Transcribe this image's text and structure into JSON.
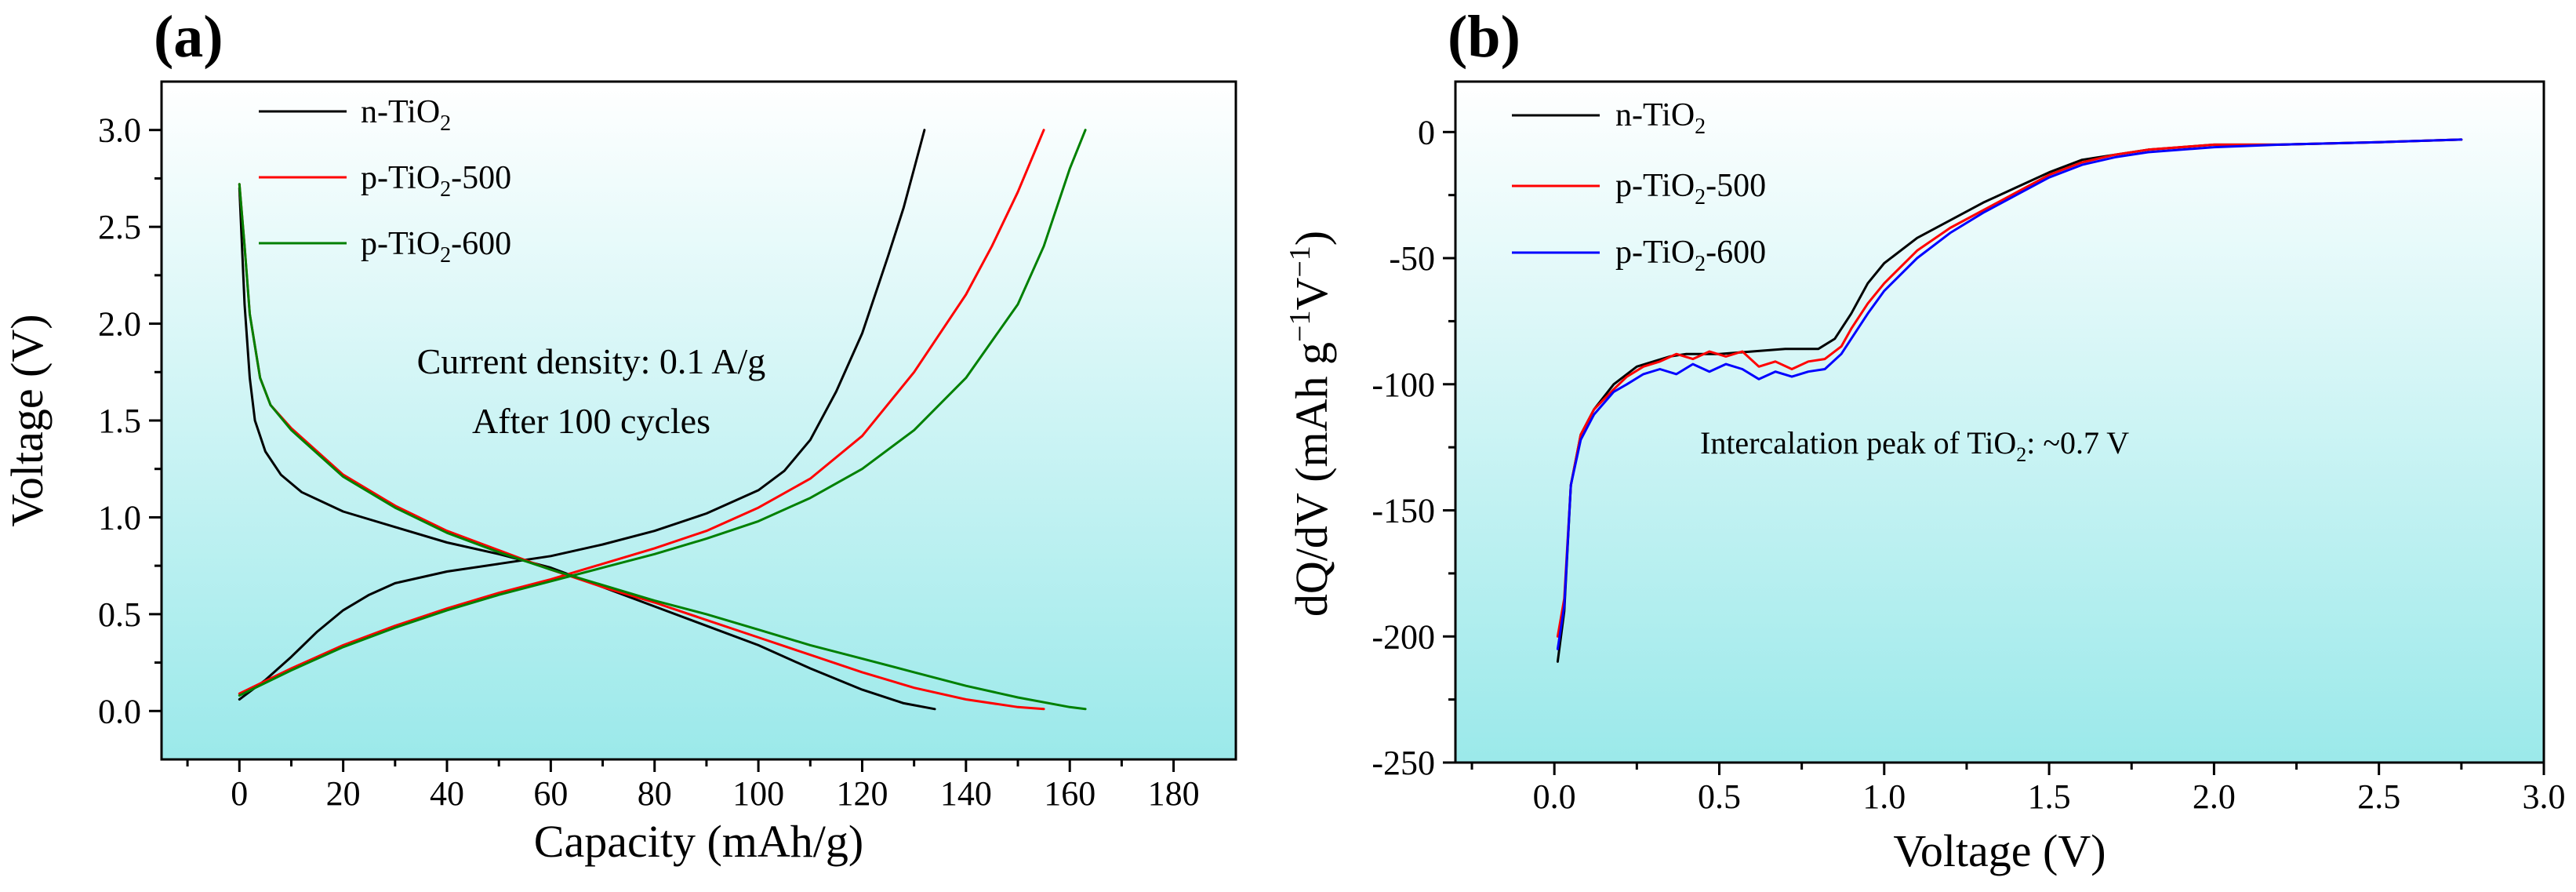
{
  "chart_data": [
    {
      "type": "line",
      "panel_label": "(a)",
      "xlabel": "Capacity (mAh/g)",
      "ylabel": "Voltage (V)",
      "xlim": [
        -15,
        192
      ],
      "ylim": [
        -0.25,
        3.25
      ],
      "xticks": [
        0,
        20,
        40,
        60,
        80,
        100,
        120,
        140,
        160,
        180
      ],
      "xtick_labels": [
        "0",
        "20",
        "40",
        "60",
        "80",
        "100",
        "120",
        "140",
        "160",
        "180"
      ],
      "yticks": [
        0.0,
        0.5,
        1.0,
        1.5,
        2.0,
        2.5,
        3.0
      ],
      "ytick_labels": [
        "0.0",
        "0.5",
        "1.0",
        "1.5",
        "2.0",
        "2.5",
        "3.0"
      ],
      "legend_position": "top-left",
      "annotations": [
        {
          "text": "Current density: 0.1 A/g",
          "at": [
            60,
            1.85
          ]
        },
        {
          "text": "After 100 cycles",
          "at": [
            60,
            1.5
          ]
        }
      ],
      "series": [
        {
          "name": "n-TiO2",
          "legend_base": "n-TiO",
          "legend_sub": "2",
          "legend_tail": "",
          "color": "#000000",
          "discharge": [
            [
              0,
              2.7
            ],
            [
              1,
              2.1
            ],
            [
              2,
              1.72
            ],
            [
              3,
              1.5
            ],
            [
              5,
              1.34
            ],
            [
              8,
              1.22
            ],
            [
              12,
              1.13
            ],
            [
              20,
              1.03
            ],
            [
              30,
              0.95
            ],
            [
              40,
              0.87
            ],
            [
              50,
              0.81
            ],
            [
              60,
              0.74
            ],
            [
              70,
              0.64
            ],
            [
              80,
              0.54
            ],
            [
              90,
              0.44
            ],
            [
              100,
              0.34
            ],
            [
              110,
              0.22
            ],
            [
              120,
              0.11
            ],
            [
              128,
              0.04
            ],
            [
              134,
              0.01
            ]
          ],
          "charge": [
            [
              0,
              0.06
            ],
            [
              5,
              0.16
            ],
            [
              10,
              0.28
            ],
            [
              15,
              0.41
            ],
            [
              20,
              0.52
            ],
            [
              25,
              0.6
            ],
            [
              30,
              0.66
            ],
            [
              40,
              0.72
            ],
            [
              50,
              0.76
            ],
            [
              60,
              0.8
            ],
            [
              70,
              0.86
            ],
            [
              80,
              0.93
            ],
            [
              90,
              1.02
            ],
            [
              100,
              1.14
            ],
            [
              105,
              1.24
            ],
            [
              110,
              1.4
            ],
            [
              115,
              1.65
            ],
            [
              120,
              1.95
            ],
            [
              125,
              2.35
            ],
            [
              128,
              2.6
            ],
            [
              130,
              2.8
            ],
            [
              132,
              3.0
            ]
          ]
        },
        {
          "name": "p-TiO2-500",
          "legend_base": "p-TiO",
          "legend_sub": "2",
          "legend_tail": "-500",
          "color": "#ff0000",
          "discharge": [
            [
              0,
              2.72
            ],
            [
              1,
              2.4
            ],
            [
              2,
              2.05
            ],
            [
              4,
              1.72
            ],
            [
              6,
              1.58
            ],
            [
              10,
              1.46
            ],
            [
              20,
              1.22
            ],
            [
              30,
              1.06
            ],
            [
              40,
              0.93
            ],
            [
              50,
              0.83
            ],
            [
              60,
              0.73
            ],
            [
              70,
              0.64
            ],
            [
              80,
              0.56
            ],
            [
              90,
              0.47
            ],
            [
              100,
              0.38
            ],
            [
              110,
              0.29
            ],
            [
              120,
              0.2
            ],
            [
              130,
              0.12
            ],
            [
              140,
              0.06
            ],
            [
              150,
              0.02
            ],
            [
              155,
              0.01
            ]
          ],
          "charge": [
            [
              0,
              0.09
            ],
            [
              10,
              0.22
            ],
            [
              20,
              0.34
            ],
            [
              30,
              0.44
            ],
            [
              40,
              0.53
            ],
            [
              50,
              0.61
            ],
            [
              60,
              0.68
            ],
            [
              70,
              0.76
            ],
            [
              80,
              0.84
            ],
            [
              90,
              0.93
            ],
            [
              100,
              1.05
            ],
            [
              110,
              1.2
            ],
            [
              120,
              1.42
            ],
            [
              130,
              1.75
            ],
            [
              140,
              2.15
            ],
            [
              145,
              2.4
            ],
            [
              150,
              2.68
            ],
            [
              155,
              3.0
            ]
          ]
        },
        {
          "name": "p-TiO2-600",
          "legend_base": "p-TiO",
          "legend_sub": "2",
          "legend_tail": "-600",
          "color": "#008000",
          "discharge": [
            [
              0,
              2.72
            ],
            [
              1,
              2.4
            ],
            [
              2,
              2.05
            ],
            [
              4,
              1.72
            ],
            [
              6,
              1.58
            ],
            [
              10,
              1.45
            ],
            [
              20,
              1.21
            ],
            [
              30,
              1.05
            ],
            [
              40,
              0.92
            ],
            [
              50,
              0.82
            ],
            [
              60,
              0.73
            ],
            [
              70,
              0.65
            ],
            [
              80,
              0.57
            ],
            [
              90,
              0.5
            ],
            [
              100,
              0.42
            ],
            [
              110,
              0.34
            ],
            [
              120,
              0.27
            ],
            [
              130,
              0.2
            ],
            [
              140,
              0.13
            ],
            [
              150,
              0.07
            ],
            [
              160,
              0.02
            ],
            [
              163,
              0.01
            ]
          ],
          "charge": [
            [
              0,
              0.08
            ],
            [
              10,
              0.21
            ],
            [
              20,
              0.33
            ],
            [
              30,
              0.43
            ],
            [
              40,
              0.52
            ],
            [
              50,
              0.6
            ],
            [
              60,
              0.67
            ],
            [
              70,
              0.74
            ],
            [
              80,
              0.81
            ],
            [
              90,
              0.89
            ],
            [
              100,
              0.98
            ],
            [
              110,
              1.1
            ],
            [
              120,
              1.25
            ],
            [
              130,
              1.45
            ],
            [
              140,
              1.72
            ],
            [
              150,
              2.1
            ],
            [
              155,
              2.4
            ],
            [
              160,
              2.8
            ],
            [
              163,
              3.0
            ]
          ]
        }
      ]
    },
    {
      "type": "line",
      "panel_label": "(b)",
      "xlabel": "Voltage (V)",
      "ylabel_main": "dQ/dV (mAh g",
      "ylabel_sup1": "−1",
      "ylabel_mid": "V",
      "ylabel_sup2": "−1",
      "ylabel_end": ")",
      "xlim": [
        -0.3,
        3.0
      ],
      "ylim": [
        -250,
        20
      ],
      "xticks": [
        0.0,
        0.5,
        1.0,
        1.5,
        2.0,
        2.5,
        3.0
      ],
      "xtick_labels": [
        "0.0",
        "0.5",
        "1.0",
        "1.5",
        "2.0",
        "2.5",
        "3.0"
      ],
      "yticks": [
        0,
        -50,
        -100,
        -150,
        -200,
        -250
      ],
      "ytick_labels": [
        "0",
        "-50",
        "-100",
        "-150",
        "-200",
        "-250"
      ],
      "legend_position": "top-left",
      "annotation": {
        "base": "Intercalation peak of TiO",
        "sub": "2",
        "tail": ": ~0.7 V",
        "at": [
          1.4,
          -122
        ]
      },
      "series": [
        {
          "name": "n-TiO2",
          "legend_base": "n-TiO",
          "legend_sub": "2",
          "legend_tail": "",
          "color": "#000000",
          "points": [
            [
              0.01,
              -210
            ],
            [
              0.03,
              -190
            ],
            [
              0.05,
              -140
            ],
            [
              0.08,
              -120
            ],
            [
              0.12,
              -110
            ],
            [
              0.18,
              -100
            ],
            [
              0.25,
              -93
            ],
            [
              0.3,
              -91
            ],
            [
              0.35,
              -89
            ],
            [
              0.4,
              -88
            ],
            [
              0.5,
              -88
            ],
            [
              0.6,
              -87
            ],
            [
              0.7,
              -86
            ],
            [
              0.8,
              -86
            ],
            [
              0.85,
              -82
            ],
            [
              0.9,
              -72
            ],
            [
              0.95,
              -60
            ],
            [
              1.0,
              -52
            ],
            [
              1.1,
              -42
            ],
            [
              1.2,
              -35
            ],
            [
              1.3,
              -28
            ],
            [
              1.4,
              -22
            ],
            [
              1.5,
              -16
            ],
            [
              1.6,
              -11
            ],
            [
              1.7,
              -9
            ],
            [
              1.8,
              -7
            ],
            [
              1.9,
              -6
            ],
            [
              2.0,
              -5
            ],
            [
              2.2,
              -5
            ],
            [
              2.5,
              -4
            ],
            [
              2.75,
              -3
            ]
          ]
        },
        {
          "name": "p-TiO2-500",
          "legend_base": "p-TiO",
          "legend_sub": "2",
          "legend_tail": "-500",
          "color": "#ff0000",
          "points": [
            [
              0.01,
              -200
            ],
            [
              0.03,
              -185
            ],
            [
              0.05,
              -140
            ],
            [
              0.08,
              -120
            ],
            [
              0.12,
              -110
            ],
            [
              0.18,
              -102
            ],
            [
              0.22,
              -97
            ],
            [
              0.27,
              -93
            ],
            [
              0.32,
              -91
            ],
            [
              0.37,
              -88
            ],
            [
              0.42,
              -90
            ],
            [
              0.47,
              -87
            ],
            [
              0.52,
              -89
            ],
            [
              0.57,
              -87
            ],
            [
              0.62,
              -93
            ],
            [
              0.67,
              -91
            ],
            [
              0.72,
              -94
            ],
            [
              0.77,
              -91
            ],
            [
              0.82,
              -90
            ],
            [
              0.87,
              -85
            ],
            [
              0.9,
              -78
            ],
            [
              0.95,
              -68
            ],
            [
              1.0,
              -60
            ],
            [
              1.1,
              -47
            ],
            [
              1.2,
              -38
            ],
            [
              1.3,
              -31
            ],
            [
              1.4,
              -24
            ],
            [
              1.5,
              -17
            ],
            [
              1.6,
              -12
            ],
            [
              1.7,
              -9
            ],
            [
              1.8,
              -7
            ],
            [
              2.0,
              -5
            ],
            [
              2.2,
              -5
            ],
            [
              2.5,
              -4
            ],
            [
              2.75,
              -3
            ]
          ]
        },
        {
          "name": "p-TiO2-600",
          "legend_base": "p-TiO",
          "legend_sub": "2",
          "legend_tail": "-600",
          "color": "#0000ff",
          "points": [
            [
              0.01,
              -205
            ],
            [
              0.03,
              -188
            ],
            [
              0.05,
              -140
            ],
            [
              0.08,
              -122
            ],
            [
              0.12,
              -112
            ],
            [
              0.18,
              -103
            ],
            [
              0.22,
              -100
            ],
            [
              0.27,
              -96
            ],
            [
              0.32,
              -94
            ],
            [
              0.37,
              -96
            ],
            [
              0.42,
              -92
            ],
            [
              0.47,
              -95
            ],
            [
              0.52,
              -92
            ],
            [
              0.57,
              -94
            ],
            [
              0.62,
              -98
            ],
            [
              0.67,
              -95
            ],
            [
              0.72,
              -97
            ],
            [
              0.77,
              -95
            ],
            [
              0.82,
              -94
            ],
            [
              0.87,
              -88
            ],
            [
              0.9,
              -82
            ],
            [
              0.95,
              -72
            ],
            [
              1.0,
              -63
            ],
            [
              1.1,
              -50
            ],
            [
              1.2,
              -40
            ],
            [
              1.3,
              -32
            ],
            [
              1.4,
              -25
            ],
            [
              1.5,
              -18
            ],
            [
              1.6,
              -13
            ],
            [
              1.7,
              -10
            ],
            [
              1.8,
              -8
            ],
            [
              2.0,
              -6
            ],
            [
              2.2,
              -5
            ],
            [
              2.5,
              -4
            ],
            [
              2.75,
              -3
            ]
          ]
        }
      ]
    }
  ]
}
